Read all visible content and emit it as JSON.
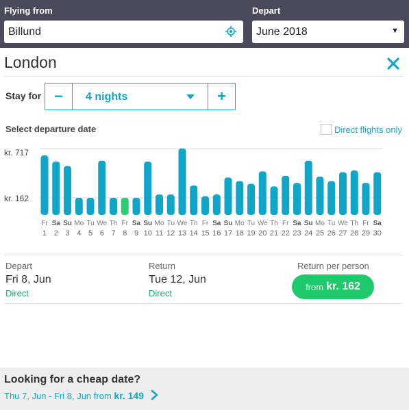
{
  "header": {
    "flying_from_label": "Flying from",
    "flying_from_value": "Billund",
    "depart_label": "Depart",
    "depart_value": "June 2018"
  },
  "destination": {
    "title": "London"
  },
  "stay": {
    "label": "Stay for",
    "minus": "−",
    "plus": "+",
    "value": "4 nights"
  },
  "calendar": {
    "select_label": "Select departure date",
    "direct_only_label": "Direct flights only",
    "y_top_label": "kr. 717",
    "y_low_label": "kr. 162"
  },
  "chart_data": {
    "type": "bar",
    "title": "",
    "ylabel": "",
    "ylim": [
      0,
      717
    ],
    "ytick_labels": [
      "kr. 162",
      "kr. 717"
    ],
    "categories": [
      "1",
      "2",
      "3",
      "4",
      "5",
      "6",
      "7",
      "8",
      "9",
      "10",
      "11",
      "12",
      "13",
      "14",
      "15",
      "16",
      "17",
      "18",
      "19",
      "20",
      "21",
      "22",
      "23",
      "24",
      "25",
      "26",
      "27",
      "28",
      "29",
      "30"
    ],
    "day_names": [
      "Fr",
      "Sa",
      "Su",
      "Mo",
      "Tu",
      "We",
      "Th",
      "Fr",
      "Sa",
      "Su",
      "Mo",
      "Tu",
      "We",
      "Th",
      "Fr",
      "Sa",
      "Su",
      "Mo",
      "Tu",
      "We",
      "Th",
      "Fr",
      "Sa",
      "Su",
      "Mo",
      "Tu",
      "We",
      "Th",
      "Fr",
      "Sa"
    ],
    "weekend": [
      false,
      true,
      true,
      false,
      false,
      false,
      false,
      false,
      true,
      true,
      false,
      false,
      false,
      false,
      false,
      true,
      true,
      false,
      false,
      false,
      false,
      false,
      true,
      true,
      false,
      false,
      false,
      false,
      false,
      true
    ],
    "values": [
      640,
      570,
      520,
      162,
      162,
      580,
      162,
      162,
      162,
      570,
      200,
      200,
      717,
      300,
      180,
      200,
      390,
      350,
      320,
      460,
      290,
      410,
      330,
      580,
      400,
      350,
      450,
      470,
      330,
      450
    ],
    "selected_index": 7,
    "bar_color": "#11a6c8",
    "selected_color": "#2ecc71"
  },
  "summary": {
    "depart_label": "Depart",
    "depart_date": "Fri 8, Jun",
    "depart_type": "Direct",
    "return_label": "Return",
    "return_date": "Tue 12, Jun",
    "return_type": "Direct",
    "price_label": "Return per person",
    "price_from": "from",
    "price_amount": "kr. 162"
  },
  "footer": {
    "title": "Looking for a cheap date?",
    "link_text": "Thu 7, Jun - Fri 8, Jun from",
    "link_amount": "kr. 149"
  },
  "icons": {
    "location": "locate-icon",
    "close": "close-icon",
    "chevron": "chevron-right-icon"
  },
  "colors": {
    "accent": "#11a6c8",
    "header_bg": "#4a4a5a",
    "price_green": "#1ec96b"
  }
}
